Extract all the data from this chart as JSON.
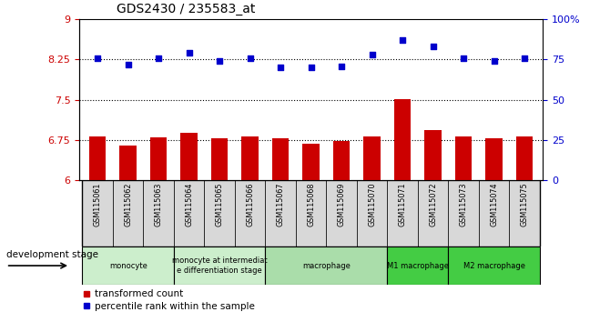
{
  "title": "GDS2430 / 235583_at",
  "samples": [
    "GSM115061",
    "GSM115062",
    "GSM115063",
    "GSM115064",
    "GSM115065",
    "GSM115066",
    "GSM115067",
    "GSM115068",
    "GSM115069",
    "GSM115070",
    "GSM115071",
    "GSM115072",
    "GSM115073",
    "GSM115074",
    "GSM115075"
  ],
  "bar_values": [
    6.82,
    6.65,
    6.8,
    6.88,
    6.79,
    6.81,
    6.78,
    6.68,
    6.74,
    6.82,
    7.52,
    6.93,
    6.81,
    6.79,
    6.82
  ],
  "dot_values": [
    76,
    72,
    76,
    79,
    74,
    76,
    70,
    70,
    71,
    78,
    87,
    83,
    76,
    74,
    76
  ],
  "bar_color": "#cc0000",
  "dot_color": "#0000cc",
  "ylim_left": [
    6,
    9
  ],
  "ylim_right": [
    0,
    100
  ],
  "yticks_left": [
    6,
    6.75,
    7.5,
    8.25,
    9
  ],
  "yticks_right": [
    0,
    25,
    50,
    75,
    100
  ],
  "ytick_labels_left": [
    "6",
    "6.75",
    "7.5",
    "8.25",
    "9"
  ],
  "ytick_labels_right": [
    "0",
    "25",
    "50",
    "75",
    "100%"
  ],
  "hlines": [
    6.75,
    7.5,
    8.25
  ],
  "stage_groups": [
    {
      "label": "monocyte",
      "start": 0,
      "end": 3,
      "color": "#cceecc"
    },
    {
      "label": "monocyte at intermediat\ne differentiation stage",
      "start": 3,
      "end": 6,
      "color": "#cceecc"
    },
    {
      "label": "macrophage",
      "start": 6,
      "end": 10,
      "color": "#aaddaa"
    },
    {
      "label": "M1 macrophage",
      "start": 10,
      "end": 12,
      "color": "#44cc44"
    },
    {
      "label": "M2 macrophage",
      "start": 12,
      "end": 15,
      "color": "#44cc44"
    }
  ],
  "legend_items": [
    {
      "label": "transformed count",
      "color": "#cc0000"
    },
    {
      "label": "percentile rank within the sample",
      "color": "#0000cc"
    }
  ],
  "dev_stage_label": "development stage"
}
